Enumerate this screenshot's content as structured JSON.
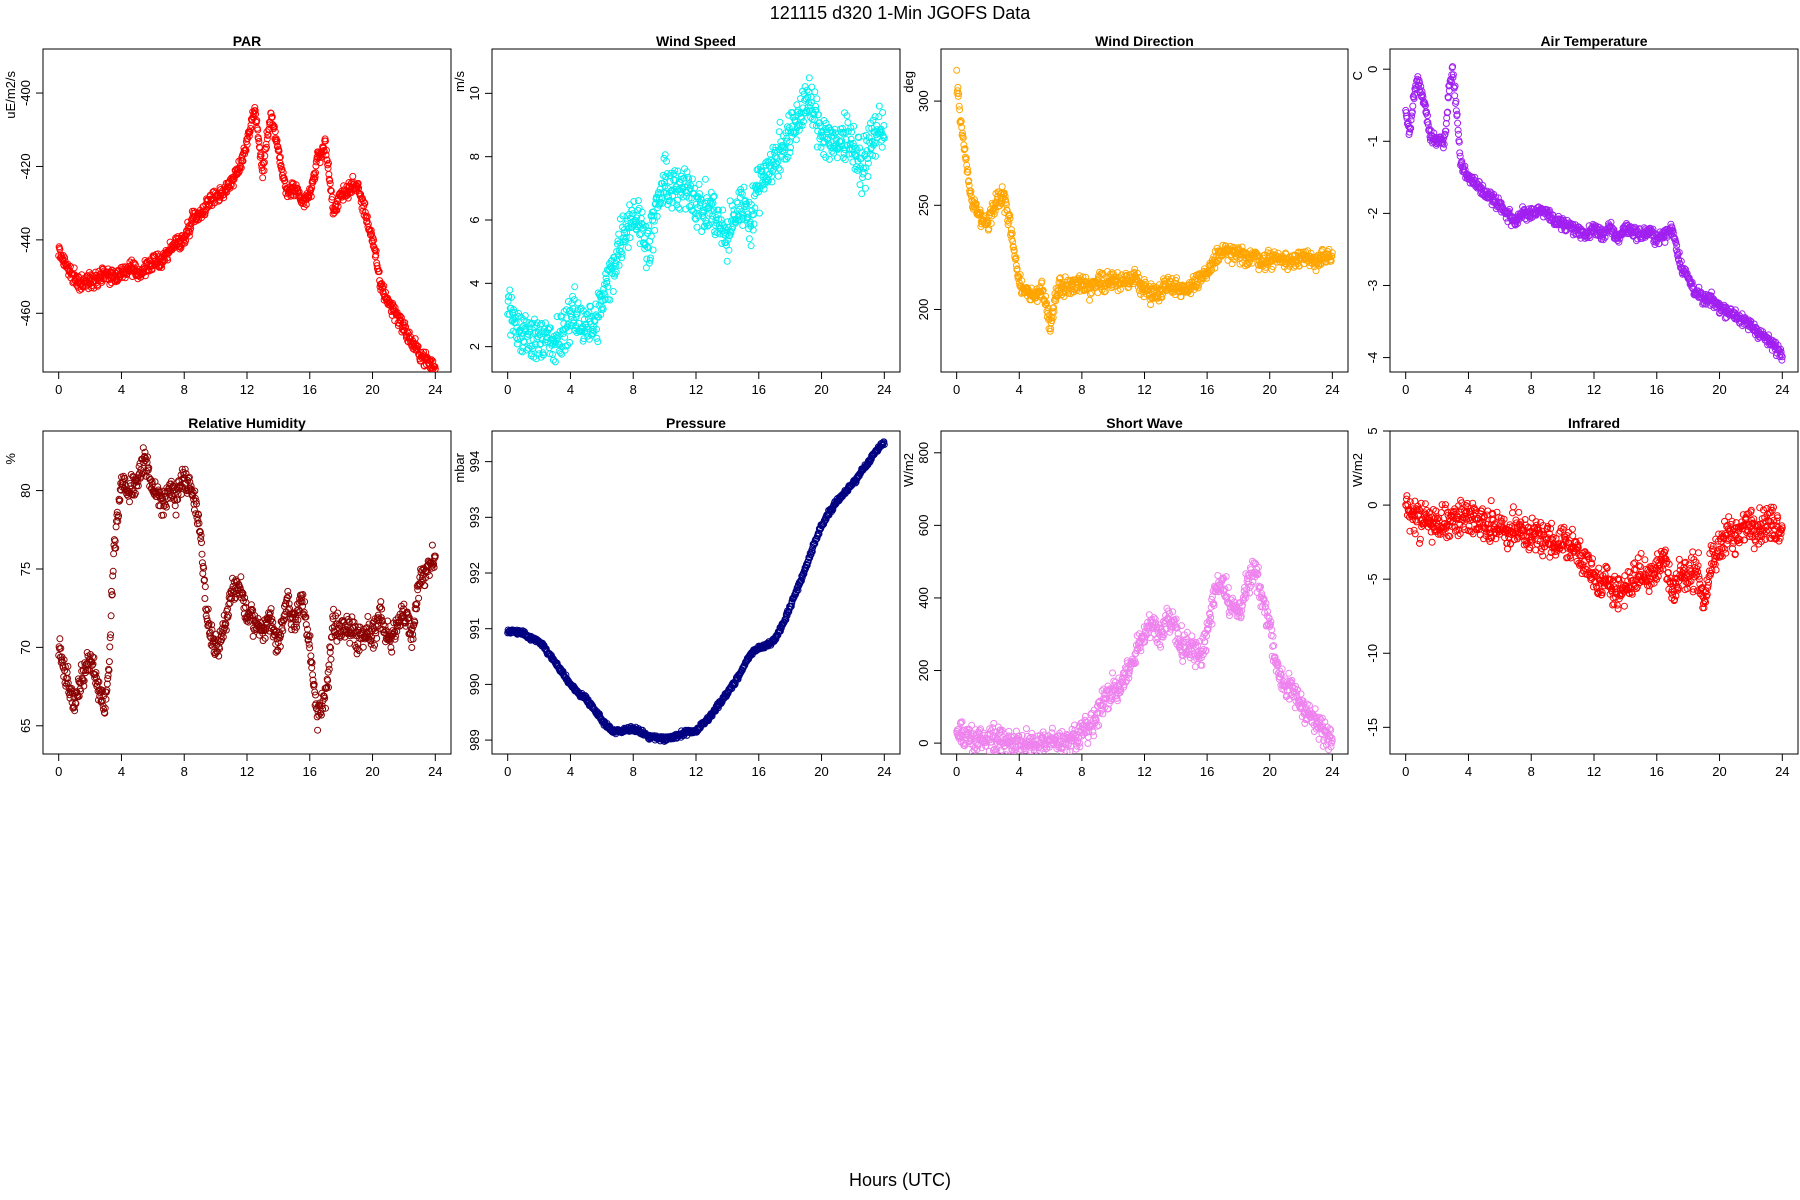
{
  "figure": {
    "title": "121115   d320   1-Min  JGOFS Data",
    "xlabel": "Hours (UTC)"
  },
  "chart_data": [
    {
      "type": "scatter",
      "title": "PAR",
      "ylabel": "uE/m2/s",
      "color": "#ff0000",
      "xlim": [
        -1,
        25
      ],
      "ylim": [
        -476,
        -388
      ],
      "xticks": [
        0,
        4,
        8,
        12,
        16,
        20,
        24
      ],
      "yticks": [
        -460,
        -440,
        -420,
        -400
      ],
      "x": [
        0,
        0.5,
        1,
        1.5,
        2,
        2.5,
        3,
        3.5,
        4,
        4.5,
        5,
        5.5,
        6,
        6.5,
        7,
        7.5,
        8,
        8.5,
        9,
        9.5,
        10,
        10.5,
        11,
        11.5,
        12,
        12.5,
        13,
        13.5,
        14,
        14.5,
        15,
        15.5,
        16,
        16.5,
        17,
        17.5,
        18,
        18.5,
        19,
        19.5,
        20,
        20.5,
        21,
        21.5,
        22,
        22.5,
        23,
        23.5,
        24
      ],
      "y": [
        -443,
        -447,
        -451,
        -452,
        -451,
        -450,
        -449,
        -450,
        -449,
        -448,
        -449,
        -448,
        -446,
        -446,
        -443,
        -441,
        -440,
        -434,
        -433,
        -430,
        -428,
        -427,
        -424,
        -421,
        -413,
        -404,
        -422,
        -405,
        -416,
        -427,
        -426,
        -430,
        -428,
        -418,
        -414,
        -432,
        -428,
        -426,
        -425,
        -432,
        -440,
        -452,
        -457,
        -460,
        -464,
        -468,
        -471,
        -473,
        -475
      ],
      "noise": 2
    },
    {
      "type": "scatter",
      "title": "Wind Speed",
      "ylabel": "m/s",
      "color": "#00eeee",
      "xlim": [
        -1,
        25
      ],
      "ylim": [
        1.2,
        11.4
      ],
      "xticks": [
        0,
        4,
        8,
        12,
        16,
        20,
        24
      ],
      "yticks": [
        2,
        4,
        6,
        8,
        10
      ],
      "x": [
        0,
        0.5,
        1,
        1.5,
        2,
        2.5,
        3,
        3.5,
        4,
        4.5,
        5,
        5.5,
        6,
        6.5,
        7,
        7.5,
        8,
        8.5,
        9,
        9.5,
        10,
        10.5,
        11,
        11.5,
        12,
        12.5,
        13,
        13.5,
        14,
        14.5,
        15,
        15.5,
        16,
        16.5,
        17,
        17.5,
        18,
        18.5,
        19,
        19.5,
        20,
        20.5,
        21,
        21.5,
        22,
        22.5,
        23,
        23.5,
        24
      ],
      "y": [
        3.2,
        2.6,
        2.4,
        2.3,
        2.4,
        2.2,
        2.0,
        2.4,
        3.0,
        2.8,
        2.8,
        2.6,
        3.4,
        4.2,
        5.0,
        5.8,
        6.2,
        5.8,
        5.2,
        6.4,
        7.2,
        7.0,
        6.8,
        7.2,
        6.6,
        6.2,
        6.4,
        5.8,
        5.4,
        6.2,
        6.6,
        6.0,
        7.2,
        7.6,
        7.8,
        8.4,
        8.6,
        9.2,
        9.8,
        9.4,
        8.8,
        8.6,
        8.2,
        8.8,
        8.4,
        7.6,
        8.2,
        8.8,
        9.0
      ],
      "noise": 0.7
    },
    {
      "type": "scatter",
      "title": "Wind Direction",
      "ylabel": "deg",
      "color": "#ffa500",
      "xlim": [
        -1,
        25
      ],
      "ylim": [
        170,
        325
      ],
      "xticks": [
        0,
        4,
        8,
        12,
        16,
        20,
        24
      ],
      "yticks": [
        200,
        250,
        300
      ],
      "x": [
        0,
        0.25,
        0.5,
        0.75,
        1,
        1.5,
        2,
        2.5,
        3,
        3.5,
        4,
        4.5,
        5,
        5.5,
        6,
        6.5,
        7,
        7.5,
        8,
        8.5,
        9,
        9.5,
        10,
        10.5,
        11,
        11.5,
        12,
        12.5,
        13,
        13.5,
        14,
        14.5,
        15,
        15.5,
        16,
        16.5,
        17,
        17.5,
        18,
        18.5,
        19,
        19.5,
        20,
        20.5,
        21,
        21.5,
        22,
        22.5,
        23,
        23.5,
        24
      ],
      "y": [
        310,
        290,
        278,
        262,
        250,
        244,
        240,
        252,
        255,
        238,
        212,
        208,
        206,
        210,
        192,
        212,
        211,
        212,
        213,
        210,
        214,
        213,
        215,
        212,
        214,
        215,
        210,
        207,
        209,
        213,
        211,
        209,
        212,
        213,
        218,
        224,
        228,
        227,
        226,
        225,
        226,
        223,
        224,
        225,
        223,
        224,
        226,
        223,
        224,
        225,
        224
      ],
      "noise": 4
    },
    {
      "type": "scatter",
      "title": "Air Temperature",
      "ylabel": "C",
      "color": "#a020f0",
      "xlim": [
        -1,
        25
      ],
      "ylim": [
        -4.2,
        0.28
      ],
      "xticks": [
        0,
        4,
        8,
        12,
        16,
        20,
        24
      ],
      "yticks": [
        -4,
        -3,
        -2,
        -1,
        0
      ],
      "x": [
        0,
        0.25,
        0.5,
        0.75,
        1,
        1.25,
        1.5,
        2,
        2.5,
        2.75,
        3,
        3.25,
        3.5,
        4,
        4.5,
        5,
        5.5,
        6,
        6.5,
        7,
        7.5,
        8,
        8.5,
        9,
        9.5,
        10,
        10.5,
        11,
        11.5,
        12,
        12.5,
        13,
        13.5,
        14,
        14.5,
        15,
        15.5,
        16,
        16.5,
        17,
        17.5,
        18,
        18.5,
        19,
        19.5,
        20,
        20.5,
        21,
        21.5,
        22,
        22.5,
        23,
        23.5,
        24
      ],
      "y": [
        -0.6,
        -0.9,
        -0.4,
        -0.1,
        -0.3,
        -0.5,
        -0.9,
        -1.0,
        -1.0,
        -0.3,
        0.0,
        -0.6,
        -1.3,
        -1.5,
        -1.6,
        -1.7,
        -1.8,
        -1.9,
        -2.0,
        -2.1,
        -2.0,
        -2.0,
        -1.95,
        -2.0,
        -2.1,
        -2.15,
        -2.2,
        -2.25,
        -2.3,
        -2.2,
        -2.3,
        -2.2,
        -2.35,
        -2.2,
        -2.25,
        -2.3,
        -2.25,
        -2.35,
        -2.3,
        -2.2,
        -2.7,
        -2.9,
        -3.1,
        -3.2,
        -3.2,
        -3.3,
        -3.35,
        -3.4,
        -3.5,
        -3.55,
        -3.65,
        -3.75,
        -3.85,
        -3.95
      ],
      "noise": 0.08
    },
    {
      "type": "scatter",
      "title": "Relative Humidity",
      "ylabel": "%",
      "color": "#8b0000",
      "xlim": [
        -1,
        25
      ],
      "ylim": [
        63.2,
        83.8
      ],
      "xticks": [
        0,
        4,
        8,
        12,
        16,
        20,
        24
      ],
      "yticks": [
        65,
        70,
        75,
        80
      ],
      "x": [
        0,
        0.5,
        1,
        1.5,
        2,
        2.5,
        3,
        3.25,
        3.5,
        4,
        4.5,
        5,
        5.5,
        6,
        6.5,
        7,
        7.5,
        8,
        8.5,
        9,
        9.5,
        10,
        10.5,
        11,
        11.5,
        12,
        12.5,
        13,
        13.5,
        14,
        14.5,
        15,
        15.5,
        16,
        16.5,
        17,
        17.5,
        18,
        18.5,
        19,
        19.5,
        20,
        20.5,
        21,
        21.5,
        22,
        22.5,
        23,
        23.5,
        24
      ],
      "y": [
        70,
        68,
        66.5,
        68,
        69.5,
        67.5,
        66,
        70,
        76,
        80.5,
        80,
        80.5,
        82,
        80,
        79.5,
        80,
        79.5,
        81,
        80,
        77.5,
        71.5,
        70,
        71,
        73.5,
        74,
        72,
        71.5,
        71,
        72,
        70,
        73,
        71.5,
        73,
        70,
        65.5,
        67,
        71.5,
        71,
        71.5,
        70.5,
        71,
        71,
        72,
        70.5,
        71,
        72.5,
        70.5,
        74.5,
        75,
        75.5
      ],
      "noise": 0.8
    },
    {
      "type": "scatter",
      "title": "Pressure",
      "ylabel": "mbar",
      "color": "#000080",
      "xlim": [
        -1,
        25
      ],
      "ylim": [
        988.75,
        994.55
      ],
      "xticks": [
        0,
        4,
        8,
        12,
        16,
        20,
        24
      ],
      "yticks": [
        989,
        990,
        991,
        992,
        993,
        994
      ],
      "x": [
        0,
        0.5,
        1,
        1.5,
        2,
        2.5,
        3,
        3.5,
        4,
        4.5,
        5,
        5.5,
        6,
        6.5,
        7,
        7.5,
        8,
        8.5,
        9,
        9.5,
        10,
        10.5,
        11,
        11.5,
        12,
        12.5,
        13,
        13.5,
        14,
        14.5,
        15,
        15.5,
        16,
        16.5,
        17,
        17.5,
        18,
        18.5,
        19,
        19.5,
        20,
        20.5,
        21,
        21.5,
        22,
        22.5,
        23,
        23.5,
        24
      ],
      "y": [
        990.95,
        990.95,
        990.92,
        990.82,
        990.78,
        990.6,
        990.4,
        990.2,
        990.0,
        989.85,
        989.75,
        989.55,
        989.35,
        989.2,
        989.15,
        989.2,
        989.2,
        989.15,
        989.05,
        989.05,
        989.02,
        989.05,
        989.1,
        989.15,
        989.15,
        989.3,
        989.45,
        989.65,
        989.85,
        990.05,
        990.3,
        990.55,
        990.65,
        990.7,
        990.8,
        991.05,
        991.4,
        991.75,
        992.1,
        992.5,
        992.85,
        993.1,
        993.3,
        993.45,
        993.6,
        993.8,
        994.0,
        994.2,
        994.35
      ],
      "noise": 0.04
    },
    {
      "type": "scatter",
      "title": "Short Wave",
      "ylabel": "W/m2",
      "color": "#ee82ee",
      "xlim": [
        -1,
        25
      ],
      "ylim": [
        -30,
        860
      ],
      "xticks": [
        0,
        4,
        8,
        12,
        16,
        20,
        24
      ],
      "yticks": [
        0,
        200,
        400,
        600,
        800
      ],
      "x": [
        0,
        0.5,
        1,
        1.5,
        2,
        2.5,
        3,
        3.5,
        4,
        4.5,
        5,
        5.5,
        6,
        6.5,
        7,
        7.5,
        8,
        8.5,
        9,
        9.5,
        10,
        10.5,
        11,
        11.5,
        12,
        12.5,
        13,
        13.5,
        14,
        14.5,
        15,
        15.5,
        16,
        16.5,
        17,
        17.5,
        18,
        18.5,
        19,
        19.5,
        20,
        20.5,
        21,
        21.5,
        22,
        22.5,
        23,
        23.5,
        24
      ],
      "y": [
        28,
        18,
        12,
        8,
        6,
        4,
        3,
        2,
        2,
        2,
        2,
        2,
        3,
        5,
        8,
        15,
        30,
        55,
        80,
        120,
        140,
        160,
        200,
        250,
        300,
        340,
        280,
        350,
        320,
        260,
        270,
        240,
        300,
        420,
        450,
        380,
        360,
        420,
        480,
        400,
        330,
        200,
        160,
        140,
        110,
        80,
        50,
        30,
        15
      ],
      "noise": 35
    },
    {
      "type": "scatter",
      "title": "Infrared",
      "ylabel": "W/m2",
      "color": "#ff0000",
      "xlim": [
        -1,
        25
      ],
      "ylim": [
        -16.8,
        5.0
      ],
      "xticks": [
        0,
        4,
        8,
        12,
        16,
        20,
        24
      ],
      "yticks": [
        -15,
        -10,
        -5,
        0,
        5
      ],
      "x": [
        0,
        0.5,
        1,
        1.5,
        2,
        2.5,
        3,
        3.5,
        4,
        4.5,
        5,
        5.5,
        6,
        6.5,
        7,
        7.5,
        8,
        8.5,
        9,
        9.5,
        10,
        10.5,
        11,
        11.5,
        12,
        12.5,
        13,
        13.5,
        14,
        14.5,
        15,
        15.5,
        16,
        16.5,
        17,
        17.5,
        18,
        18.5,
        19,
        19.5,
        20,
        20.5,
        21,
        21.5,
        22,
        22.5,
        23,
        23.5,
        24
      ],
      "y": [
        -0.3,
        -0.8,
        -1.0,
        -1.1,
        -1.5,
        -1.2,
        -1.1,
        -0.9,
        -0.6,
        -1.0,
        -1.3,
        -1.2,
        -1.5,
        -1.8,
        -1.6,
        -1.9,
        -2.0,
        -2.1,
        -2.3,
        -2.5,
        -2.4,
        -2.8,
        -3.0,
        -4.0,
        -5.0,
        -5.5,
        -5.0,
        -6.0,
        -5.5,
        -5.0,
        -4.5,
        -5.0,
        -4.0,
        -3.5,
        -6.0,
        -4.5,
        -5.0,
        -4.0,
        -6.5,
        -4.0,
        -3.0,
        -1.5,
        -2.5,
        -1.5,
        -1.0,
        -1.5,
        -1.2,
        -1.3,
        -1.5
      ],
      "noise": 1.1
    }
  ]
}
